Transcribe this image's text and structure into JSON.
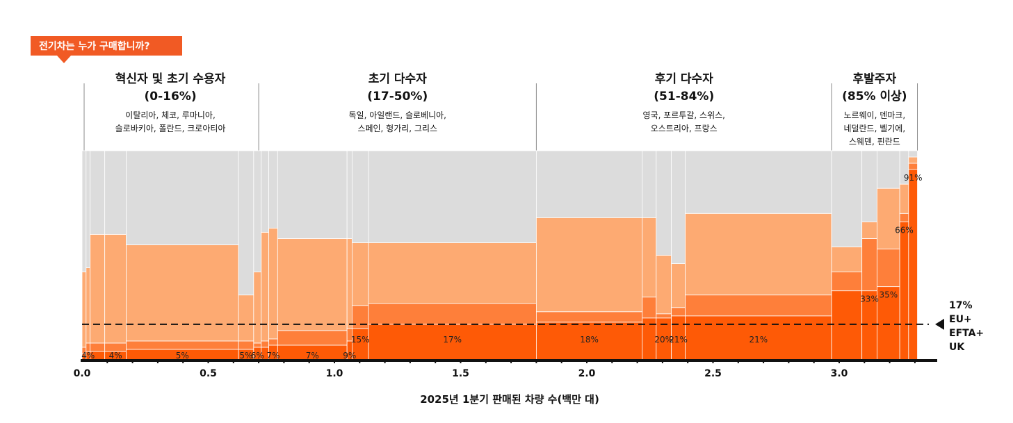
{
  "colors": {
    "bev": "#fe5a06",
    "phev": "#fe7f3a",
    "hev": "#fdaa72",
    "other": "#dcdcdc",
    "badge": "#f15a24"
  },
  "badge": {
    "text": "전기차는 누가 구매합니까?"
  },
  "segments": [
    {
      "title": "혁신자 및 초기 수용자",
      "range": "(0-16%)",
      "countries": [
        "이탈리아, 체코, 루마니아,",
        "슬로바키아, 폴란드, 크로아티아"
      ],
      "x_start": 0.0,
      "x_end": 0.7
    },
    {
      "title": "초기 다수자",
      "range": "(17-50%)",
      "countries": [
        "독일, 아일랜드, 슬로베니아,",
        "스페인, 헝가리, 그리스"
      ],
      "x_start": 0.7,
      "x_end": 1.8
    },
    {
      "title": "후기 다수자",
      "range": "(51-84%)",
      "countries": [
        "영국, 포르투갈, 스위스,",
        "오스트리아, 프랑스"
      ],
      "x_start": 1.8,
      "x_end": 2.97
    },
    {
      "title": "후발주자",
      "range": "(85% 이상)",
      "countries": [
        "노르웨이, 덴마크,",
        "네덜란드, 벨기에,",
        "스웨덴, 핀란드"
      ],
      "x_start": 2.97,
      "x_end": 3.31
    }
  ],
  "chart_data": {
    "type": "marimekko",
    "xlabel": "2025년 1분기 판매된 차량 수(백만 대)",
    "xlim": [
      0,
      3.31
    ],
    "xticks": [
      "0.0",
      "0.5",
      "1.0",
      "1.5",
      "2.0",
      "2.5",
      "3.0"
    ],
    "ylim": [
      0,
      1
    ],
    "series_names": [
      "bev",
      "phev",
      "hev",
      "other"
    ],
    "columns": [
      {
        "x0": 0.0,
        "x1": 0.016,
        "bev": 0.03,
        "phev": 0.03,
        "hev": 0.36,
        "label": ""
      },
      {
        "x0": 0.016,
        "x1": 0.032,
        "bev": 0.04,
        "phev": 0.04,
        "hev": 0.36,
        "label": "4%"
      },
      {
        "x0": 0.032,
        "x1": 0.09,
        "bev": 0.04,
        "phev": 0.04,
        "hev": 0.52,
        "label": ""
      },
      {
        "x0": 0.09,
        "x1": 0.175,
        "bev": 0.04,
        "phev": 0.04,
        "hev": 0.52,
        "label": "4%"
      },
      {
        "x0": 0.175,
        "x1": 0.62,
        "bev": 0.05,
        "phev": 0.04,
        "hev": 0.46,
        "label": "5%"
      },
      {
        "x0": 0.62,
        "x1": 0.68,
        "bev": 0.05,
        "phev": 0.04,
        "hev": 0.22,
        "label": "5%"
      },
      {
        "x0": 0.68,
        "x1": 0.71,
        "bev": 0.06,
        "phev": 0.02,
        "hev": 0.34,
        "label": "6%"
      },
      {
        "x0": 0.71,
        "x1": 0.74,
        "bev": 0.06,
        "phev": 0.03,
        "hev": 0.52,
        "label": ""
      },
      {
        "x0": 0.74,
        "x1": 0.775,
        "bev": 0.07,
        "phev": 0.03,
        "hev": 0.53,
        "label": "7%"
      },
      {
        "x0": 0.775,
        "x1": 1.05,
        "bev": 0.07,
        "phev": 0.07,
        "hev": 0.44,
        "label": "7%"
      },
      {
        "x0": 1.05,
        "x1": 1.07,
        "bev": 0.09,
        "phev": 0.06,
        "hev": 0.43,
        "label": "9%"
      },
      {
        "x0": 1.07,
        "x1": 1.135,
        "bev": 0.15,
        "phev": 0.11,
        "hev": 0.3,
        "label": "15%"
      },
      {
        "x0": 1.135,
        "x1": 1.8,
        "bev": 0.17,
        "phev": 0.1,
        "hev": 0.29,
        "label": "17%"
      },
      {
        "x0": 1.8,
        "x1": 2.22,
        "bev": 0.18,
        "phev": 0.05,
        "hev": 0.45,
        "label": "18%"
      },
      {
        "x0": 2.22,
        "x1": 2.275,
        "bev": 0.2,
        "phev": 0.1,
        "hev": 0.38,
        "label": ""
      },
      {
        "x0": 2.275,
        "x1": 2.335,
        "bev": 0.2,
        "phev": 0.02,
        "hev": 0.28,
        "label": "20%"
      },
      {
        "x0": 2.335,
        "x1": 2.39,
        "bev": 0.21,
        "phev": 0.04,
        "hev": 0.21,
        "label": "21%"
      },
      {
        "x0": 2.39,
        "x1": 2.97,
        "bev": 0.21,
        "phev": 0.1,
        "hev": 0.39,
        "label": "21%"
      },
      {
        "x0": 2.97,
        "x1": 3.09,
        "bev": 0.33,
        "phev": 0.09,
        "hev": 0.12,
        "label": ""
      },
      {
        "x0": 3.09,
        "x1": 3.15,
        "bev": 0.33,
        "phev": 0.25,
        "hev": 0.08,
        "label": "33%"
      },
      {
        "x0": 3.15,
        "x1": 3.24,
        "bev": 0.35,
        "phev": 0.18,
        "hev": 0.29,
        "label": "35%"
      },
      {
        "x0": 3.24,
        "x1": 3.275,
        "bev": 0.66,
        "phev": 0.04,
        "hev": 0.14,
        "label": "66%"
      },
      {
        "x0": 3.275,
        "x1": 3.31,
        "bev": 0.91,
        "phev": 0.03,
        "hev": 0.03,
        "label": "91%"
      }
    ],
    "average": {
      "value": 0.17,
      "label_lines": [
        "17%",
        "EU+",
        "EFTA+",
        "UK"
      ]
    }
  }
}
